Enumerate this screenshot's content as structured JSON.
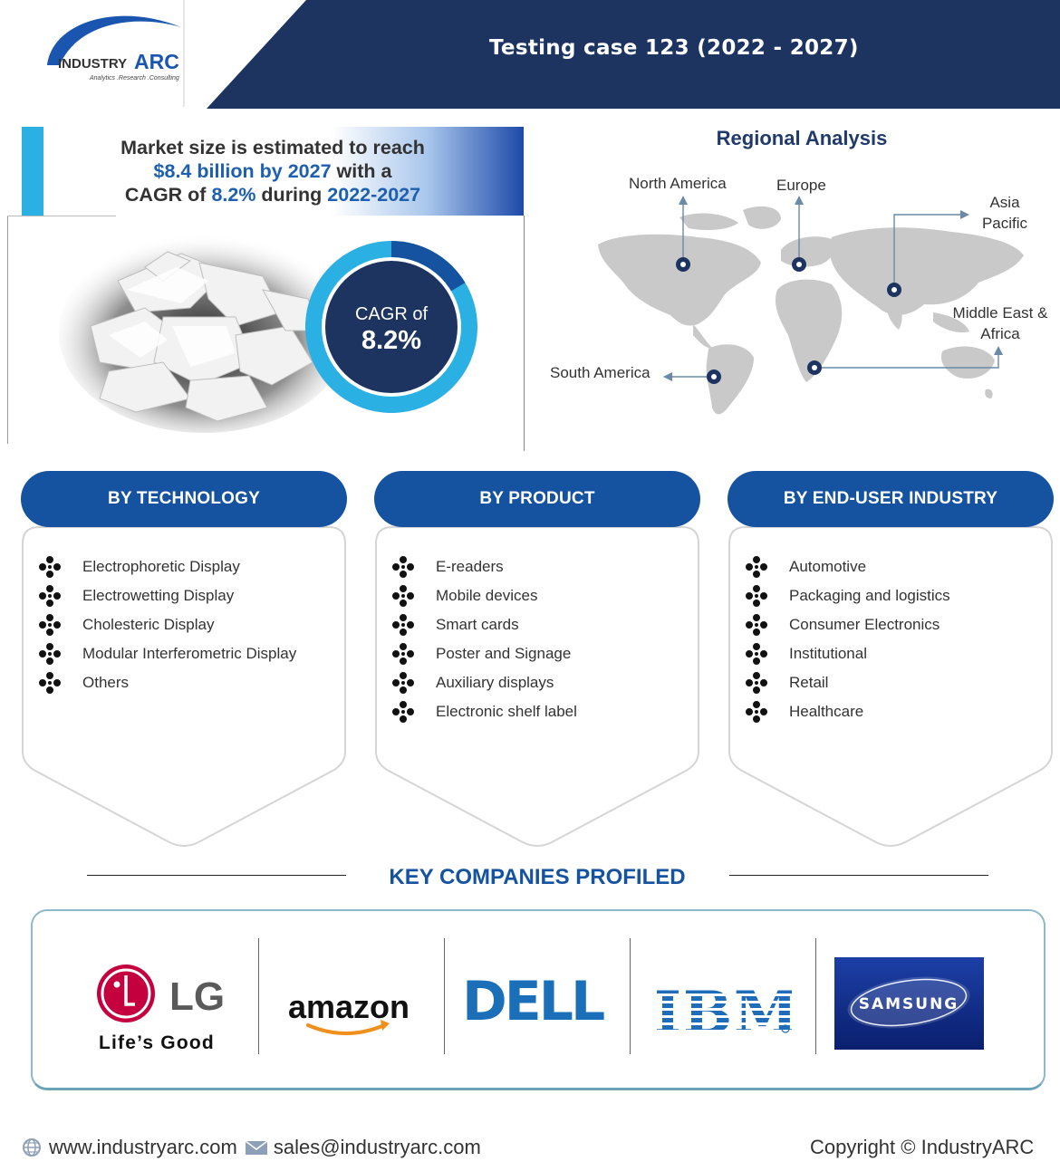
{
  "header": {
    "logo_text": "INDUSTRYARC",
    "logo_tagline": "Analytics .Research .Consulting",
    "title": "Testing case 123 (2022 - 2027)"
  },
  "market": {
    "line1": "Market size is estimated to reach",
    "size_value": "$8.4 billion by 2027",
    "line2_suffix": " with a",
    "line3_prefix": "CAGR of ",
    "cagr_value": "8.2%",
    "line3_mid": " during ",
    "period": "2022-2027",
    "cagr_label": "CAGR of",
    "cagr_display": "8.2%",
    "cagr_fraction": 0.082
  },
  "regional": {
    "title": "Regional Analysis",
    "regions": {
      "north_america": "North America",
      "europe": "Europe",
      "asia_pacific_1": "Asia",
      "asia_pacific_2": "Pacific",
      "mea_1": "Middle East &",
      "mea_2": "Africa",
      "south_america": "South America"
    }
  },
  "segments": [
    {
      "title": "BY TECHNOLOGY",
      "items": [
        "Electrophoretic Display",
        "Electrowetting Display",
        "Cholesteric Display",
        "Modular Interferometric Display",
        "Others"
      ]
    },
    {
      "title": "BY PRODUCT",
      "items": [
        "E-readers",
        "Mobile devices",
        "Smart cards",
        "Poster and Signage",
        "Auxiliary displays",
        "Electronic shelf label"
      ]
    },
    {
      "title": "BY END-USER INDUSTRY",
      "items": [
        "Automotive",
        "Packaging and logistics",
        "Consumer Electronics",
        "Institutional",
        "Retail",
        "Healthcare"
      ]
    }
  ],
  "companies": {
    "title": "KEY COMPANIES PROFILED",
    "lg": {
      "mark": "LG",
      "tagline": "Life’s Good"
    },
    "amazon": "amazon",
    "dell": "DELL",
    "ibm": "IBM",
    "samsung": "SAMSUNG"
  },
  "footer": {
    "website": "www.industryarc.com",
    "email": "sales@industryarc.com",
    "copyright": "Copyright © IndustryARC"
  },
  "colors": {
    "navy": "#1d3461",
    "accent_blue": "#1553a1",
    "sky": "#2bb0e4",
    "highlight": "#1d5fb0"
  }
}
